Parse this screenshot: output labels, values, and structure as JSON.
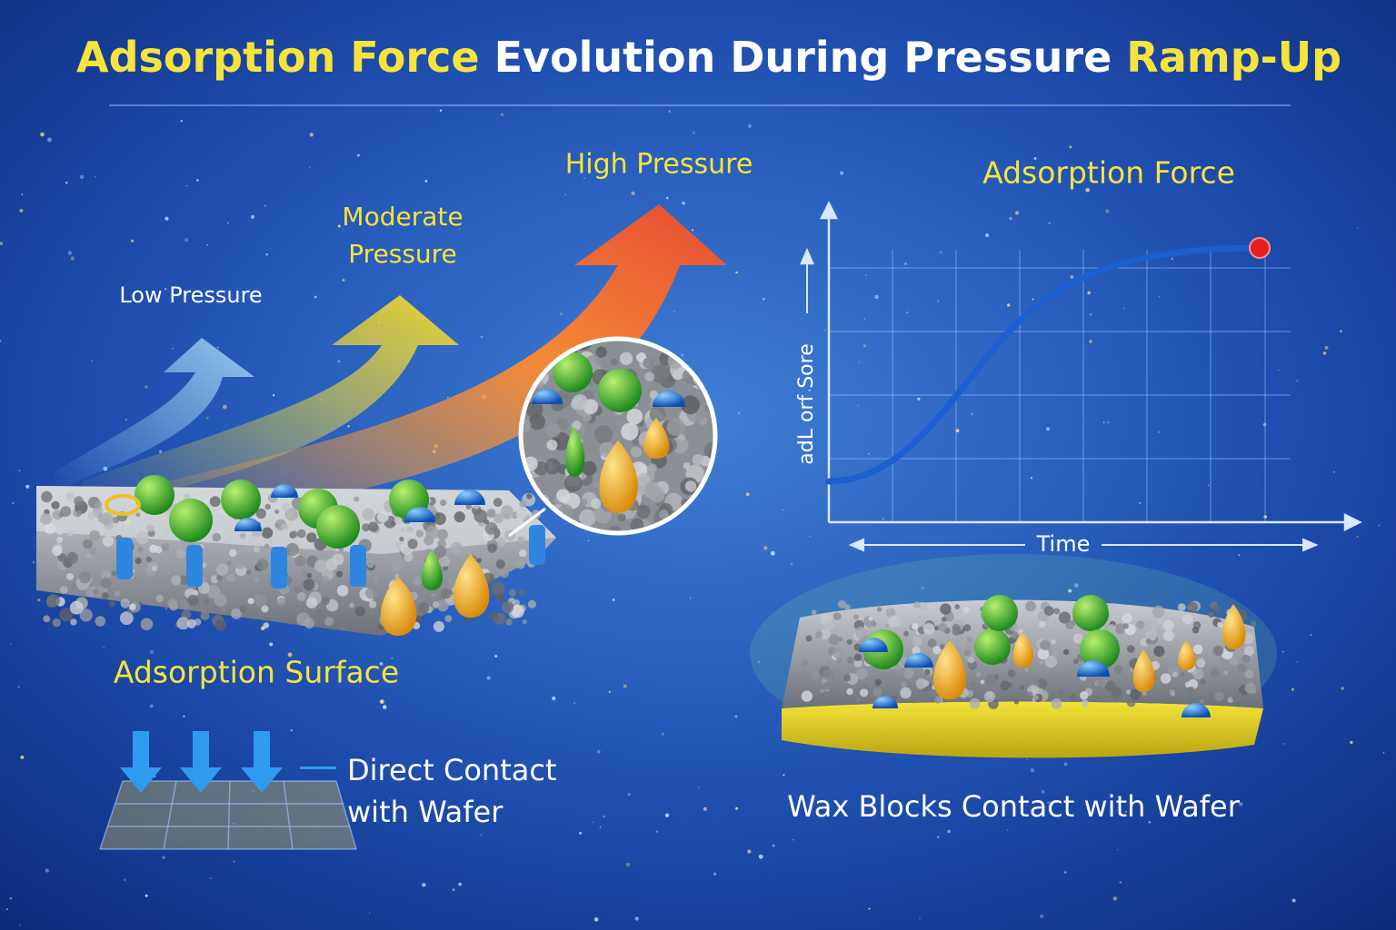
{
  "title": {
    "parts": [
      "Adsorption Force",
      "Evolution During Pressure",
      "Ramp-Up"
    ]
  },
  "pressure_labels": {
    "low": "Low Pressure",
    "moderate": [
      "Moderate",
      "Pressure"
    ],
    "high": "High Pressure"
  },
  "left_scene": {
    "surface_label": "Adsorption Surface",
    "contact_label": [
      "Direct Contact",
      "with Wafer"
    ]
  },
  "graph": {
    "title": "Adsorption Force",
    "y_label": "adL orf Sore",
    "x_label": "Time"
  },
  "right_scene": {
    "label": "Wax Blocks Contact with Wafer"
  }
}
